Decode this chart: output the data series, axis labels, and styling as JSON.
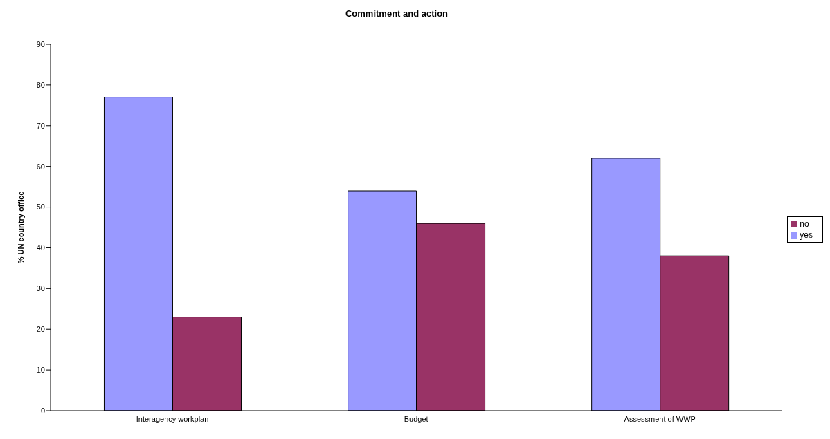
{
  "chart_data": {
    "type": "bar",
    "title": "Commitment and action",
    "ylabel": "% UN country office",
    "categories": [
      "Interagency workplan",
      "Budget",
      "Assessment of  WWP"
    ],
    "series": [
      {
        "name": "yes",
        "color": "#9999ff",
        "values": [
          77,
          54,
          62
        ]
      },
      {
        "name": "no",
        "color": "#993366",
        "values": [
          23,
          46,
          38
        ]
      }
    ],
    "ylim": [
      0,
      90
    ],
    "yticks": [
      0,
      10,
      20,
      30,
      40,
      50,
      60,
      70,
      80,
      90
    ],
    "grid": false,
    "legend": "right"
  }
}
